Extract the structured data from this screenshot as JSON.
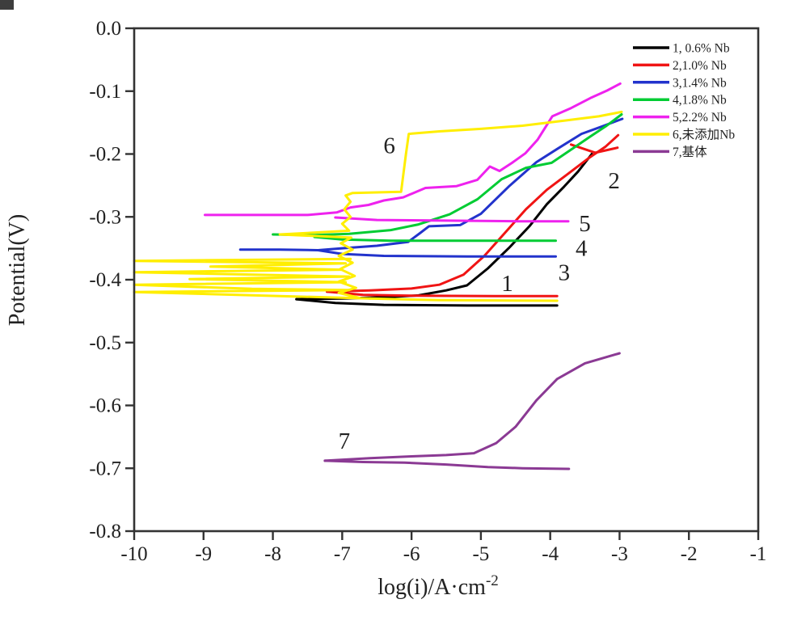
{
  "chart_data": {
    "type": "line",
    "title": "",
    "xlabel_main": "log(i)/A·cm",
    "xlabel_sup": "-2",
    "ylabel": "Potential(V)",
    "xlim": [
      -10,
      -1
    ],
    "ylim": [
      -0.8,
      0.0
    ],
    "grid": false,
    "x_tick_values": [
      -10,
      -9,
      -8,
      -7,
      -6,
      -5,
      -4,
      -3,
      -2,
      -1
    ],
    "x_tick_labels": [
      "-10",
      "-9",
      "-8",
      "-7",
      "-6",
      "-5",
      "-4",
      "-3",
      "-2",
      "-1"
    ],
    "y_tick_values": [
      0.0,
      -0.1,
      -0.2,
      -0.3,
      -0.4,
      -0.5,
      -0.6,
      -0.7,
      -0.8
    ],
    "y_tick_labels": [
      "0.0",
      "-0.1",
      "-0.2",
      "-0.3",
      "-0.4",
      "-0.5",
      "-0.6",
      "-0.7",
      "-0.8"
    ],
    "legend_position": "top-right",
    "legend_entries": [
      {
        "label": "1, 0.6% Nb",
        "color": "#000000"
      },
      {
        "label": "2,1.0% Nb",
        "color": "#f01414"
      },
      {
        "label": "3,1.4% Nb",
        "color": "#2233cc"
      },
      {
        "label": "4,1.8% Nb",
        "color": "#00cc33"
      },
      {
        "label": "5,2.2% Nb",
        "color": "#ee22ee"
      },
      {
        "label": "6,未添加Nb",
        "color": "#ffee00"
      },
      {
        "label": "7,基体",
        "color": "#8b3a94"
      }
    ],
    "annotations": [
      {
        "text": "1",
        "x": -4.62,
        "y": -0.405
      },
      {
        "text": "2",
        "x": -3.08,
        "y": -0.242
      },
      {
        "text": "3",
        "x": -3.8,
        "y": -0.388
      },
      {
        "text": "4",
        "x": -3.55,
        "y": -0.349
      },
      {
        "text": "5",
        "x": -3.5,
        "y": -0.31
      },
      {
        "text": "6",
        "x": -6.32,
        "y": -0.186
      },
      {
        "text": "7",
        "x": -6.97,
        "y": -0.656
      }
    ],
    "series": [
      {
        "name": "1, 0.6% Nb",
        "color": "#000000",
        "segments": [
          [
            [
              -7.66,
              -0.431
            ],
            [
              -7.0,
              -0.43
            ],
            [
              -6.4,
              -0.428
            ],
            [
              -5.9,
              -0.425
            ],
            [
              -5.5,
              -0.417
            ],
            [
              -5.2,
              -0.409
            ],
            [
              -4.9,
              -0.382
            ],
            [
              -4.6,
              -0.35
            ],
            [
              -4.3,
              -0.315
            ],
            [
              -4.05,
              -0.28
            ],
            [
              -3.8,
              -0.252
            ],
            [
              -3.6,
              -0.228
            ],
            [
              -3.4,
              -0.2
            ]
          ],
          [
            [
              -7.66,
              -0.431
            ],
            [
              -7.1,
              -0.437
            ],
            [
              -6.4,
              -0.44
            ],
            [
              -5.2,
              -0.441
            ],
            [
              -3.9,
              -0.441
            ]
          ]
        ]
      },
      {
        "name": "2,1.0% Nb",
        "color": "#f01414",
        "segments": [
          [
            [
              -7.22,
              -0.419
            ],
            [
              -6.6,
              -0.417
            ],
            [
              -6.0,
              -0.414
            ],
            [
              -5.6,
              -0.408
            ],
            [
              -5.25,
              -0.392
            ],
            [
              -4.95,
              -0.362
            ],
            [
              -4.65,
              -0.325
            ],
            [
              -4.35,
              -0.288
            ],
            [
              -4.05,
              -0.257
            ],
            [
              -3.75,
              -0.232
            ],
            [
              -3.45,
              -0.207
            ],
            [
              -3.2,
              -0.188
            ],
            [
              -3.02,
              -0.17
            ]
          ],
          [
            [
              -7.22,
              -0.419
            ],
            [
              -6.7,
              -0.424
            ],
            [
              -6.0,
              -0.4255
            ],
            [
              -4.8,
              -0.426
            ],
            [
              -3.9,
              -0.426
            ]
          ],
          [
            [
              -3.7,
              -0.185
            ],
            [
              -3.35,
              -0.198
            ],
            [
              -3.03,
              -0.19
            ]
          ]
        ]
      },
      {
        "name": "3,1.4% Nb",
        "color": "#2233cc",
        "segments": [
          [
            [
              -8.47,
              -0.352
            ],
            [
              -7.9,
              -0.352
            ],
            [
              -7.35,
              -0.353
            ],
            [
              -7.0,
              -0.35
            ],
            [
              -6.5,
              -0.346
            ],
            [
              -6.05,
              -0.34
            ],
            [
              -5.88,
              -0.326
            ],
            [
              -5.75,
              -0.315
            ],
            [
              -5.3,
              -0.313
            ],
            [
              -5.0,
              -0.295
            ],
            [
              -4.6,
              -0.252
            ],
            [
              -4.2,
              -0.213
            ],
            [
              -3.9,
              -0.192
            ],
            [
              -3.55,
              -0.168
            ],
            [
              -3.25,
              -0.156
            ],
            [
              -2.96,
              -0.144
            ]
          ],
          [
            [
              -7.35,
              -0.353
            ],
            [
              -7.0,
              -0.359
            ],
            [
              -6.4,
              -0.362
            ],
            [
              -5.2,
              -0.363
            ],
            [
              -3.92,
              -0.363
            ]
          ]
        ]
      },
      {
        "name": "4,1.8% Nb",
        "color": "#00cc33",
        "segments": [
          [
            [
              -8.0,
              -0.328
            ],
            [
              -7.4,
              -0.329
            ],
            [
              -6.9,
              -0.327
            ],
            [
              -6.3,
              -0.321
            ],
            [
              -5.9,
              -0.312
            ],
            [
              -5.45,
              -0.296
            ],
            [
              -5.05,
              -0.272
            ],
            [
              -4.7,
              -0.24
            ],
            [
              -4.35,
              -0.222
            ],
            [
              -3.98,
              -0.214
            ],
            [
              -3.7,
              -0.193
            ],
            [
              -3.42,
              -0.172
            ],
            [
              -3.2,
              -0.156
            ],
            [
              -2.97,
              -0.137
            ]
          ],
          [
            [
              -7.4,
              -0.332
            ],
            [
              -7.0,
              -0.336
            ],
            [
              -6.3,
              -0.338
            ],
            [
              -5.0,
              -0.338
            ],
            [
              -3.92,
              -0.338
            ]
          ]
        ]
      },
      {
        "name": "5,2.2% Nb",
        "color": "#ee22ee",
        "segments": [
          [
            [
              -8.98,
              -0.297
            ],
            [
              -8.2,
              -0.297
            ],
            [
              -7.5,
              -0.297
            ],
            [
              -7.08,
              -0.293
            ],
            [
              -6.88,
              -0.285
            ],
            [
              -6.62,
              -0.281
            ],
            [
              -6.4,
              -0.274
            ],
            [
              -6.12,
              -0.269
            ],
            [
              -5.8,
              -0.254
            ],
            [
              -5.35,
              -0.251
            ],
            [
              -5.05,
              -0.241
            ],
            [
              -4.87,
              -0.22
            ],
            [
              -4.73,
              -0.227
            ],
            [
              -4.55,
              -0.214
            ],
            [
              -4.36,
              -0.199
            ],
            [
              -4.18,
              -0.177
            ],
            [
              -3.97,
              -0.14
            ],
            [
              -3.7,
              -0.127
            ],
            [
              -3.42,
              -0.111
            ],
            [
              -3.18,
              -0.099
            ],
            [
              -2.99,
              -0.088
            ]
          ],
          [
            [
              -7.1,
              -0.301
            ],
            [
              -6.5,
              -0.305
            ],
            [
              -5.5,
              -0.306
            ],
            [
              -4.5,
              -0.307
            ],
            [
              -3.74,
              -0.307
            ]
          ]
        ]
      },
      {
        "name": "6,未添加Nb",
        "color": "#ffee00",
        "segments": [
          [
            [
              -6.6,
              -0.43
            ],
            [
              -10,
              -0.4195
            ],
            [
              -6.9,
              -0.4165
            ],
            [
              -8.3,
              -0.4145
            ],
            [
              -10,
              -0.408
            ],
            [
              -6.95,
              -0.404
            ],
            [
              -9.2,
              -0.399
            ],
            [
              -6.9,
              -0.395
            ],
            [
              -10,
              -0.388
            ],
            [
              -7.0,
              -0.384
            ],
            [
              -8.9,
              -0.379
            ],
            [
              -6.95,
              -0.374
            ],
            [
              -10,
              -0.37
            ],
            [
              -6.88,
              -0.367
            ]
          ],
          [
            [
              -6.6,
              -0.43
            ],
            [
              -5.6,
              -0.4325
            ],
            [
              -3.9,
              -0.4335
            ]
          ],
          [
            [
              -6.75,
              -0.429
            ],
            [
              -7.05,
              -0.421
            ],
            [
              -6.8,
              -0.413
            ],
            [
              -7.05,
              -0.403
            ],
            [
              -6.82,
              -0.394
            ],
            [
              -7.03,
              -0.383
            ],
            [
              -6.85,
              -0.373
            ],
            [
              -7.05,
              -0.362
            ],
            [
              -6.85,
              -0.352
            ],
            [
              -7.02,
              -0.342
            ],
            [
              -6.87,
              -0.333
            ],
            [
              -7.9,
              -0.328
            ],
            [
              -6.9,
              -0.322
            ],
            [
              -7.0,
              -0.311
            ],
            [
              -6.88,
              -0.3
            ],
            [
              -6.97,
              -0.288
            ],
            [
              -6.88,
              -0.276
            ],
            [
              -6.95,
              -0.266
            ],
            [
              -6.85,
              -0.262
            ],
            [
              -6.45,
              -0.261
            ],
            [
              -6.15,
              -0.26
            ],
            [
              -6.08,
              -0.2
            ],
            [
              -6.04,
              -0.168
            ],
            [
              -5.6,
              -0.164
            ],
            [
              -5.0,
              -0.16
            ],
            [
              -4.4,
              -0.155
            ],
            [
              -3.8,
              -0.147
            ],
            [
              -3.3,
              -0.14
            ],
            [
              -2.97,
              -0.133
            ]
          ]
        ]
      },
      {
        "name": "7,基体",
        "color": "#8b3a94",
        "segments": [
          [
            [
              -7.25,
              -0.688
            ],
            [
              -6.6,
              -0.684
            ],
            [
              -6.0,
              -0.681
            ],
            [
              -5.5,
              -0.679
            ],
            [
              -5.1,
              -0.676
            ],
            [
              -4.78,
              -0.66
            ],
            [
              -4.5,
              -0.634
            ],
            [
              -4.2,
              -0.592
            ],
            [
              -3.9,
              -0.558
            ],
            [
              -3.5,
              -0.533
            ],
            [
              -3.0,
              -0.517
            ]
          ],
          [
            [
              -7.25,
              -0.688
            ],
            [
              -6.7,
              -0.69
            ],
            [
              -6.1,
              -0.691
            ],
            [
              -5.5,
              -0.694
            ],
            [
              -4.9,
              -0.698
            ],
            [
              -4.4,
              -0.7
            ],
            [
              -3.73,
              -0.701
            ]
          ]
        ]
      }
    ]
  }
}
